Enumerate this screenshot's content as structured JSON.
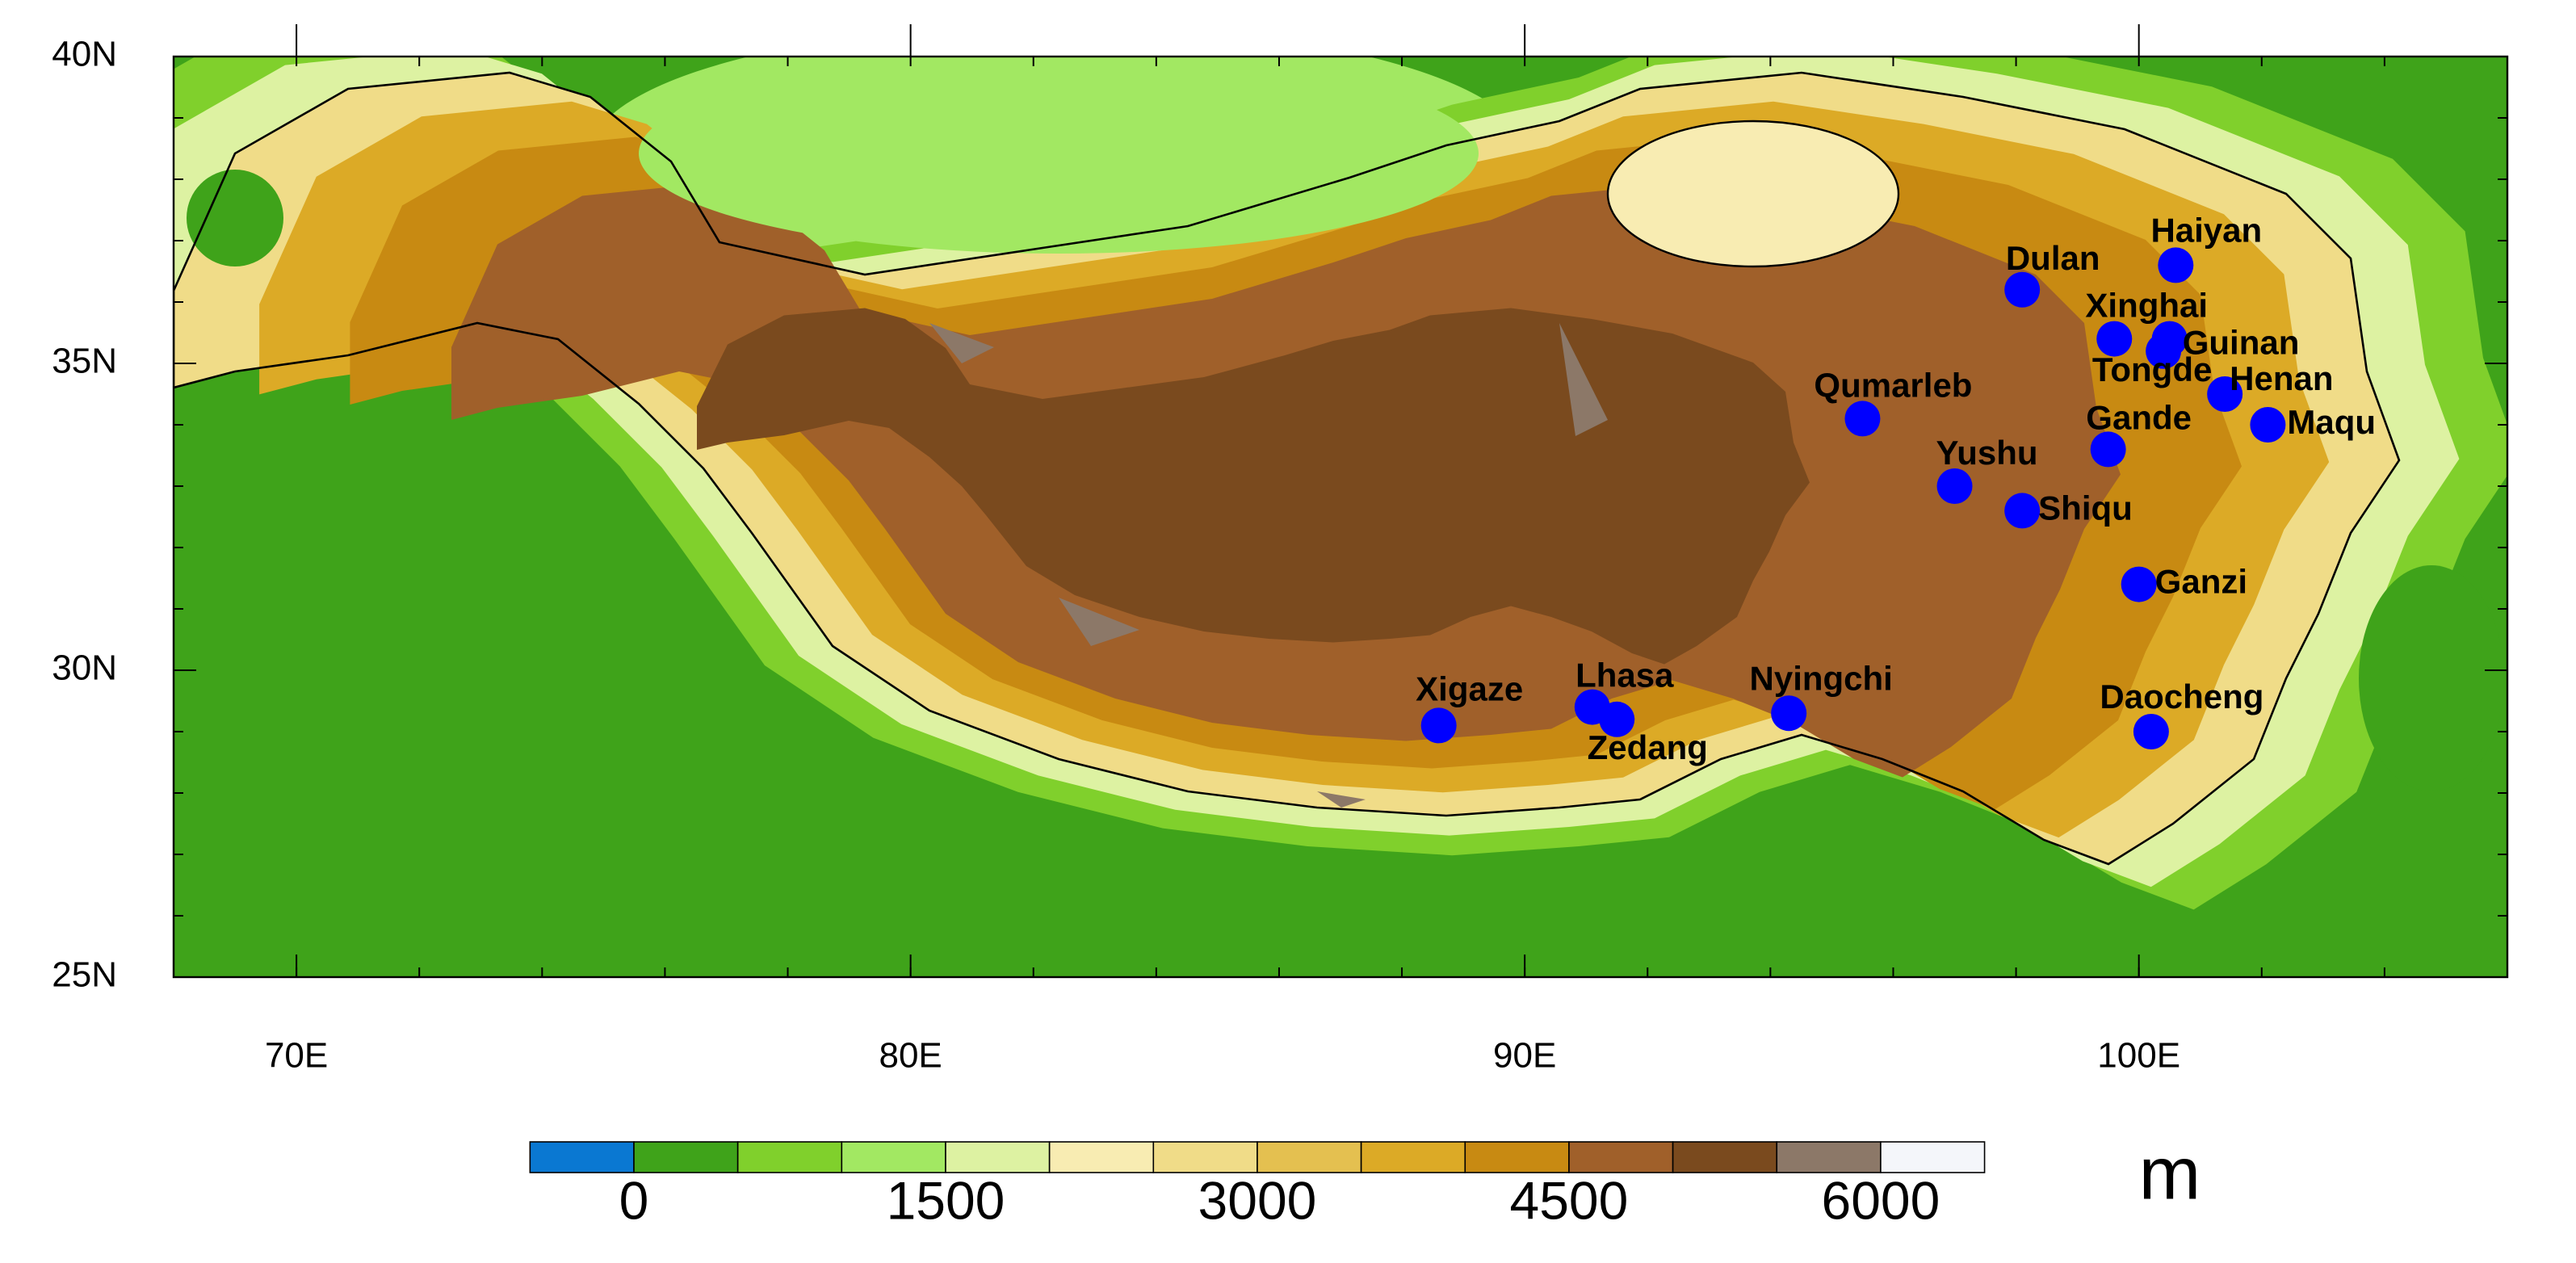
{
  "map": {
    "xlim": [
      68,
      106
    ],
    "ylim": [
      25,
      40
    ],
    "xticks": [
      {
        "value": 70,
        "label": "70E"
      },
      {
        "value": 80,
        "label": "80E"
      },
      {
        "value": 90,
        "label": "90E"
      },
      {
        "value": 100,
        "label": "100E"
      }
    ],
    "yticks": [
      {
        "value": 25,
        "label": "25N"
      },
      {
        "value": 30,
        "label": "30N"
      },
      {
        "value": 35,
        "label": "35N"
      },
      {
        "value": 40,
        "label": "40N"
      }
    ],
    "stations": [
      {
        "name": "Xigaze",
        "lon": 88.6,
        "lat": 29.1
      },
      {
        "name": "Lhasa",
        "lon": 91.1,
        "lat": 29.4
      },
      {
        "name": "Zedang",
        "lon": 91.5,
        "lat": 29.2
      },
      {
        "name": "Nyingchi",
        "lon": 94.3,
        "lat": 29.3
      },
      {
        "name": "Qumarleb",
        "lon": 95.5,
        "lat": 34.1
      },
      {
        "name": "Yushu",
        "lon": 97.0,
        "lat": 33.0
      },
      {
        "name": "Shiqu",
        "lon": 98.1,
        "lat": 32.6
      },
      {
        "name": "Ganzi",
        "lon": 100.0,
        "lat": 31.4
      },
      {
        "name": "Daocheng",
        "lon": 100.2,
        "lat": 29.0
      },
      {
        "name": "Dulan",
        "lon": 98.1,
        "lat": 36.2
      },
      {
        "name": "Haiyan",
        "lon": 100.6,
        "lat": 36.6
      },
      {
        "name": "Xinghai",
        "lon": 99.6,
        "lat": 35.4
      },
      {
        "name": "Guinan",
        "lon": 100.5,
        "lat": 35.4
      },
      {
        "name": "Tongde",
        "lon": 100.4,
        "lat": 35.2
      },
      {
        "name": "Henan",
        "lon": 101.4,
        "lat": 34.5
      },
      {
        "name": "Maqu",
        "lon": 102.1,
        "lat": 34.0
      },
      {
        "name": "Gande",
        "lon": 99.5,
        "lat": 33.6
      }
    ],
    "colorbar": {
      "levels": [
        0,
        500,
        1000,
        1500,
        2000,
        2500,
        3000,
        3500,
        4000,
        4500,
        5000,
        5500,
        6000
      ],
      "ticks": [
        0,
        1500,
        3000,
        4500,
        6000
      ],
      "colors": [
        "#0a78d2",
        "#3fa31a",
        "#80d02c",
        "#a2e862",
        "#ddf2a2",
        "#f8ecb2",
        "#f0dc88",
        "#e4c050",
        "#dcaa26",
        "#c88a12",
        "#a0602a",
        "#7a4a1e",
        "#8c7868",
        "#f4f6fa"
      ],
      "unit": "m"
    }
  }
}
